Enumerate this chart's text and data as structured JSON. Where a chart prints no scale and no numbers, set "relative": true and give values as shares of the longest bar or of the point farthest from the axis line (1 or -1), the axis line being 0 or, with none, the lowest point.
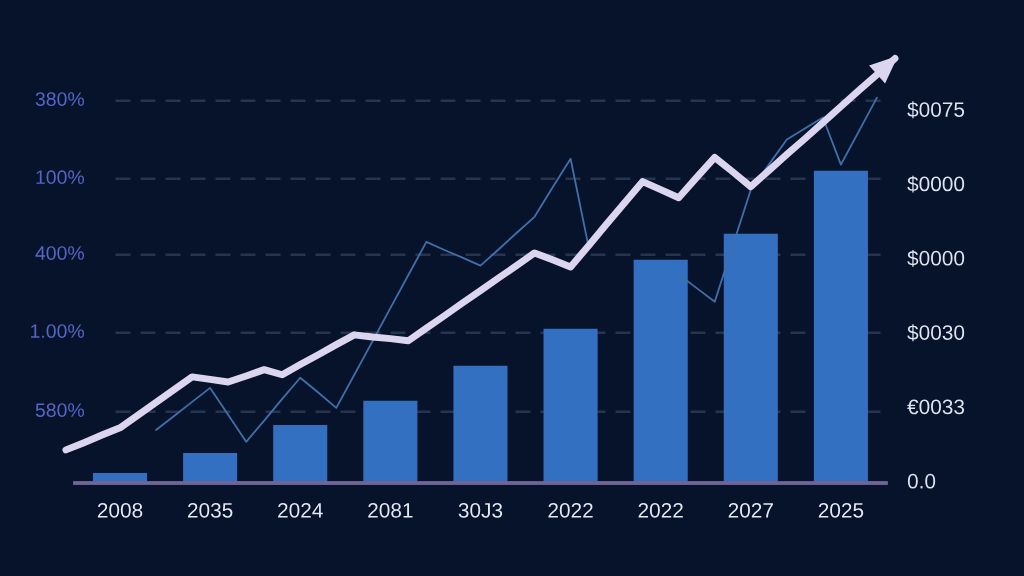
{
  "chart_data": [
    {
      "type": "bar",
      "relative": true,
      "categories": [
        "2008",
        "2035",
        "2024",
        "2081",
        "30J3",
        "2022",
        "2022",
        "2027",
        "2025"
      ],
      "values": [
        0.032,
        0.096,
        0.186,
        0.263,
        0.375,
        0.494,
        0.715,
        0.798,
        1
      ],
      "color": "#3470c2",
      "ref_lines": [
        {
          "axis": "y",
          "value": 1.224,
          "line_style": "dashed",
          "color": "#26344f"
        },
        {
          "axis": "y",
          "value": 0.974,
          "line_style": "dashed",
          "color": "#26344f"
        },
        {
          "axis": "y",
          "value": 0.731,
          "line_style": "dashed",
          "color": "#26344f"
        },
        {
          "axis": "y",
          "value": 0.481,
          "line_style": "dashed",
          "color": "#26344f"
        },
        {
          "axis": "y",
          "value": 0.228,
          "line_style": "dashed",
          "color": "#26344f"
        }
      ],
      "annotations": [
        "380%",
        "100%",
        "400%",
        "1.00%",
        "580%",
        "$0075",
        "$0000",
        "$0000",
        "$0030",
        "€0033",
        "0.0"
      ]
    },
    {
      "type": "line",
      "relative": true,
      "categories": [
        null,
        null,
        null,
        null,
        null,
        null,
        null,
        null,
        null,
        null,
        null,
        null,
        null,
        null,
        null,
        null,
        null,
        null,
        null,
        null,
        null,
        null,
        null,
        null,
        null,
        null,
        null,
        null,
        null,
        null,
        null,
        null,
        null,
        null,
        null,
        null,
        null,
        null,
        null,
        null,
        null,
        null,
        null,
        null,
        null,
        null,
        null
      ],
      "series": [
        {
          "color": "#3f70aa",
          "values": [
            null,
            null,
            null,
            null,
            null,
            0.125,
            0.158,
            0.191,
            0.224,
            0.161,
            0.097,
            0.147,
            0.198,
            0.248,
            0.213,
            0.177,
            0.255,
            0.333,
            0.412,
            0.49,
            0.568,
            0.549,
            0.531,
            0.512,
            0.55,
            0.589,
            0.627,
            0.696,
            0.764,
            0.557,
            null,
            null,
            null,
            null,
            0.491,
            0.459,
            0.427,
            0.559,
            0.691,
            0.75,
            0.809,
            0.835,
            0.861,
            0.75,
            0.829,
            0.908,
            null
          ]
        },
        {
          "color": "#dcd5f0",
          "values": [
            0.078,
            0.095,
            0.113,
            0.13,
            0.16,
            0.19,
            0.22,
            0.25,
            0.244,
            0.238,
            0.252,
            0.267,
            0.255,
            0.279,
            0.302,
            0.326,
            0.349,
            0.344,
            0.34,
            0.335,
            0.365,
            0.394,
            0.424,
            0.453,
            0.483,
            0.512,
            0.542,
            0.526,
            0.509,
            0.559,
            0.61,
            0.66,
            0.71,
            0.691,
            0.672,
            0.72,
            0.767,
            0.733,
            0.698,
            0.736,
            0.774,
            0.811,
            0.849,
            0.887,
            0.925,
            0.962,
            1
          ]
        }
      ]
    }
  ]
}
